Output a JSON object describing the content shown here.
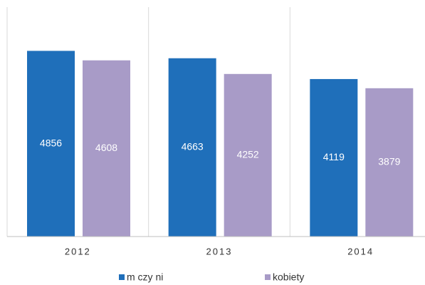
{
  "chart_data": {
    "type": "bar",
    "categories": [
      "2012",
      "2013",
      "2014"
    ],
    "series": [
      {
        "name": "m czy ni",
        "color": "#1f6fba",
        "values": [
          4856,
          4663,
          4119
        ]
      },
      {
        "name": "kobiety",
        "color": "#a89bc7",
        "values": [
          4608,
          4252,
          3879
        ]
      }
    ],
    "ylim": [
      0,
      6000
    ]
  }
}
